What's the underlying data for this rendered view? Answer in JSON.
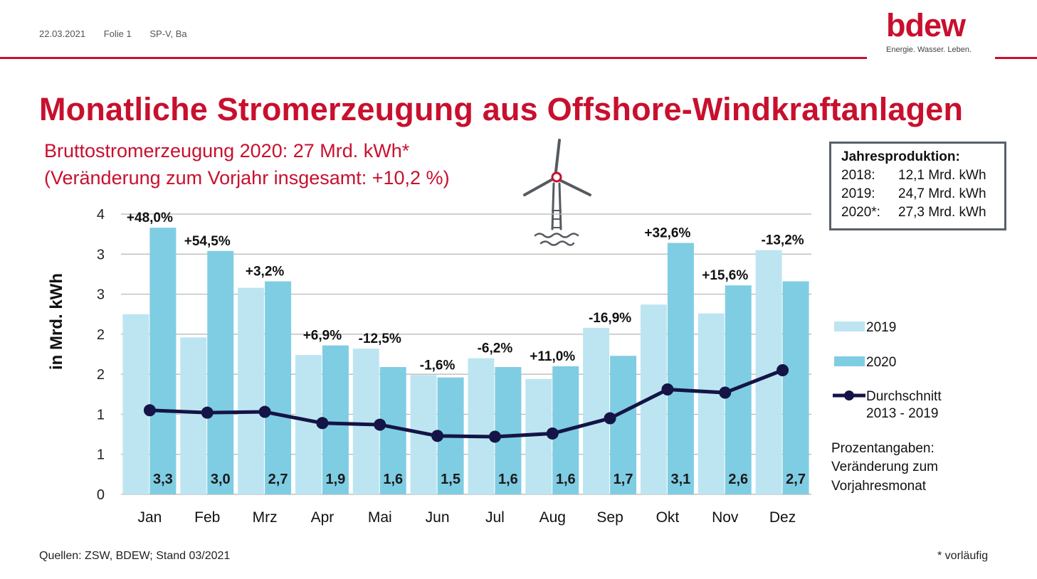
{
  "header": {
    "date": "22.03.2021",
    "slide": "Folie 1",
    "author": "SP-V, Ba"
  },
  "logo": {
    "word": "bdew",
    "tagline": "Energie. Wasser. Leben."
  },
  "title": "Monatliche Stromerzeugung aus Offshore-Windkraftanlagen",
  "subtitle_line1": "Bruttostromerzeugung 2020: 27 Mrd. kWh*",
  "subtitle_line2": "(Veränderung zum Vorjahr insgesamt: +10,2 %)",
  "infobox": {
    "title": "Jahresproduktion:",
    "rows": [
      {
        "year": "2018:",
        "value": "12,1 Mrd. kWh"
      },
      {
        "year": "2019:",
        "value": "24,7 Mrd. kWh"
      },
      {
        "year": "2020*:",
        "value": "27,3 Mrd. kWh"
      }
    ]
  },
  "legend": {
    "s2019": "2019",
    "s2020": "2020",
    "avg_line1": "Durchschnitt",
    "avg_line2": "2013 - 2019",
    "note_line1": "Prozentangaben:",
    "note_line2": "Veränderung zum",
    "note_line3": "Vorjahresmonat"
  },
  "footer": {
    "sources": "Quellen: ZSW, BDEW; Stand 03/2021",
    "note": "* vorläufig"
  },
  "colors": {
    "accent": "#c8102e",
    "bar2019": "#bde5f1",
    "bar2020": "#7fcde3",
    "avg": "#141446",
    "grid": "#b4b4b4"
  },
  "chart_data": {
    "type": "bar",
    "ylabel": "in Mrd. kWh",
    "ylim": [
      0,
      3.5
    ],
    "y_tick_values": [
      0,
      0.5,
      1,
      1.5,
      2,
      2.5,
      3,
      3.5
    ],
    "y_tick_labels": [
      "0",
      "1",
      "1",
      "2",
      "2",
      "3",
      "3",
      "4"
    ],
    "categories": [
      "Jan",
      "Feb",
      "Mrz",
      "Apr",
      "Mai",
      "Jun",
      "Jul",
      "Aug",
      "Sep",
      "Okt",
      "Nov",
      "Dez"
    ],
    "series": [
      {
        "name": "2019",
        "kind": "bar",
        "values": [
          2.25,
          1.96,
          2.58,
          1.74,
          1.82,
          1.49,
          1.7,
          1.44,
          2.08,
          2.37,
          2.26,
          3.05
        ]
      },
      {
        "name": "2020",
        "kind": "bar",
        "values": [
          3.33,
          3.04,
          2.66,
          1.86,
          1.59,
          1.46,
          1.59,
          1.6,
          1.73,
          3.14,
          2.61,
          2.66
        ]
      },
      {
        "name": "Durchschnitt 2013 - 2019",
        "kind": "line",
        "values": [
          1.05,
          1.02,
          1.03,
          0.89,
          0.87,
          0.73,
          0.72,
          0.76,
          0.95,
          1.31,
          1.27,
          1.55
        ]
      }
    ],
    "bar_labels_2020": [
      "3,3",
      "3,0",
      "2,7",
      "1,9",
      "1,6",
      "1,5",
      "1,6",
      "1,6",
      "1,7",
      "3,1",
      "2,6",
      "2,7"
    ],
    "change_labels": [
      "+48,0%",
      "+54,5%",
      "+3,2%",
      "+6,9%",
      "-12,5%",
      "-1,6%",
      "-6,2%",
      "+11,0%",
      "-16,9%",
      "+32,6%",
      "+15,6%",
      "-13,2%"
    ],
    "grid": true,
    "legend_position": "right"
  }
}
